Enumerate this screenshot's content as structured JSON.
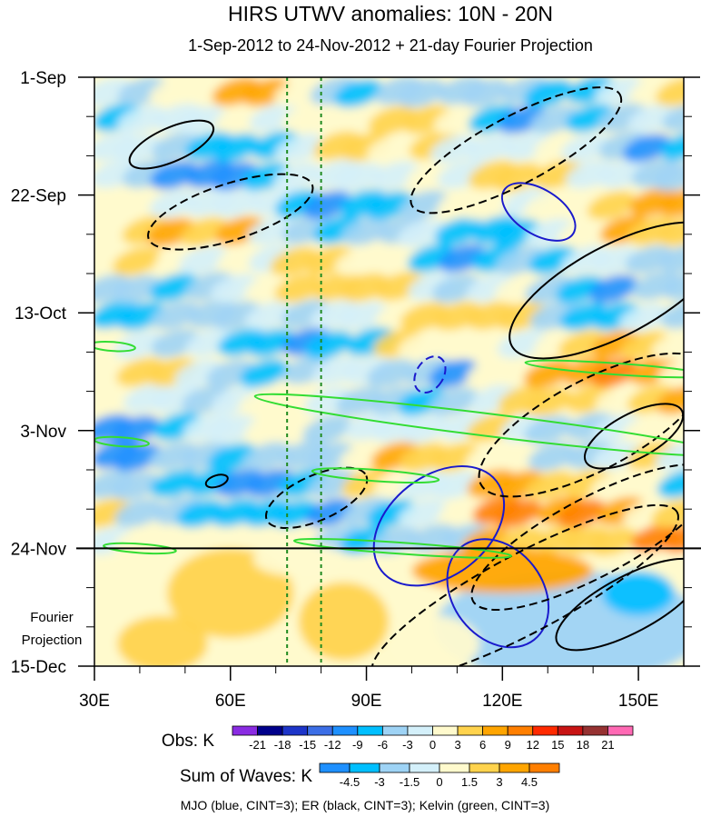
{
  "chart_data": {
    "type": "heatmap",
    "title": "HIRS UTWV anomalies: 10N - 20N",
    "subtitle": "1-Sep-2012 to 24-Nov-2012 + 21-day Fourier Projection",
    "x_axis": {
      "range_deg_east": [
        30,
        160
      ],
      "ticks": [
        {
          "value": 30,
          "label": "30E"
        },
        {
          "value": 60,
          "label": "60E"
        },
        {
          "value": 90,
          "label": "90E"
        },
        {
          "value": 120,
          "label": "120E"
        },
        {
          "value": 150,
          "label": "150E"
        }
      ]
    },
    "y_axis": {
      "range_day_index": [
        0,
        105
      ],
      "direction": "time increases downward",
      "ticks": [
        {
          "day": 0,
          "label": "1-Sep"
        },
        {
          "day": 21,
          "label": "22-Sep"
        },
        {
          "day": 42,
          "label": "13-Oct"
        },
        {
          "day": 63,
          "label": "3-Nov"
        },
        {
          "day": 84,
          "label": "24-Nov"
        },
        {
          "day": 105,
          "label": "15-Dec"
        }
      ]
    },
    "observation_end_day": 84,
    "projection_label_line1": "Fourier",
    "projection_label_line2": "Projection",
    "reference_longitudes_dashed": [
      72.5,
      80
    ],
    "obs_colorbar": {
      "label": "Obs: K",
      "levels": [
        "-21",
        "-18",
        "-15",
        "-12",
        "-9",
        "-6",
        "-3",
        "0",
        "3",
        "6",
        "9",
        "12",
        "15",
        "18",
        "21"
      ],
      "colors": [
        "#8a2be2",
        "#00008b",
        "#1d35c9",
        "#3c6ee6",
        "#1e90ff",
        "#00bfff",
        "#9ed3f5",
        "#d4f0fa",
        "#fffacd",
        "#ffd34d",
        "#ffa500",
        "#ff7f00",
        "#ff2a00",
        "#c81414",
        "#963232",
        "#ff69b4"
      ]
    },
    "waves_colorbar": {
      "label": "Sum of Waves: K",
      "levels": [
        "-4.5",
        "-3",
        "-1.5",
        "0",
        "1.5",
        "3",
        "4.5"
      ],
      "colors": [
        "#1e90ff",
        "#00bfff",
        "#9ed3f5",
        "#d4f0fa",
        "#fffacd",
        "#ffd34d",
        "#ffa500",
        "#ff7f00"
      ]
    },
    "contour_legend": "MJO (blue, CINT=3); ER (black, CINT=3); Kelvin (green, CINT=3)",
    "wave_contours": {
      "MJO": [
        {
          "sign": "positive",
          "lon": 128,
          "day": 24,
          "along_lon": 9,
          "along_day": 4
        },
        {
          "sign": "negative",
          "lon": 104,
          "day": 53,
          "along_lon": 3,
          "along_day": 3.5
        },
        {
          "sign": "positive",
          "lon": 106,
          "day": 80,
          "along_lon": 11,
          "along_day": 13
        },
        {
          "sign": "positive",
          "lon": 119,
          "day": 92,
          "along_lon": 13,
          "along_day": 8
        }
      ],
      "ER": [
        {
          "sign": "positive",
          "lon": 47,
          "day": 12,
          "along_lon": 10,
          "along_day": 3
        },
        {
          "sign": "negative",
          "lon": 60,
          "day": 24,
          "along_lon": 19,
          "along_day": 5
        },
        {
          "sign": "negative",
          "lon": 123,
          "day": 13,
          "along_lon": 26,
          "along_day": 6
        },
        {
          "sign": "positive",
          "lon": 145,
          "day": 38,
          "along_lon": 26,
          "along_day": 8
        },
        {
          "sign": "negative",
          "lon": 140,
          "day": 62,
          "along_lon": 28,
          "along_day": 8
        },
        {
          "sign": "positive",
          "lon": 149,
          "day": 64,
          "along_lon": 12,
          "along_day": 4
        },
        {
          "sign": "negative",
          "lon": 79,
          "day": 75,
          "along_lon": 12,
          "along_day": 4
        },
        {
          "sign": "positive",
          "lon": 57,
          "day": 72,
          "along_lon": 2.5,
          "along_day": 1
        },
        {
          "sign": "negative",
          "lon": 140,
          "day": 82,
          "along_lon": 30,
          "along_day": 7
        },
        {
          "sign": "negative",
          "lon": 125,
          "day": 92,
          "along_lon": 38,
          "along_day": 7
        },
        {
          "sign": "positive",
          "lon": 148,
          "day": 94,
          "along_lon": 18,
          "along_day": 5
        }
      ],
      "Kelvin": [
        {
          "sign": "positive",
          "lon": 117,
          "day": 62,
          "along_lon": 52,
          "along_day": 2
        },
        {
          "sign": "positive",
          "lon": 145,
          "day": 52,
          "along_lon": 20,
          "along_day": 1
        },
        {
          "sign": "positive",
          "lon": 92,
          "day": 71,
          "along_lon": 14,
          "along_day": 1
        },
        {
          "sign": "positive",
          "lon": 98,
          "day": 84,
          "along_lon": 24,
          "along_day": 1
        },
        {
          "sign": "positive",
          "lon": 40,
          "day": 84,
          "along_lon": 8,
          "along_day": 0.8
        },
        {
          "sign": "positive",
          "lon": 36,
          "day": 65,
          "along_lon": 6,
          "along_day": 0.8
        },
        {
          "sign": "positive",
          "lon": 34,
          "day": 48,
          "along_lon": 5,
          "along_day": 0.8
        }
      ]
    }
  }
}
